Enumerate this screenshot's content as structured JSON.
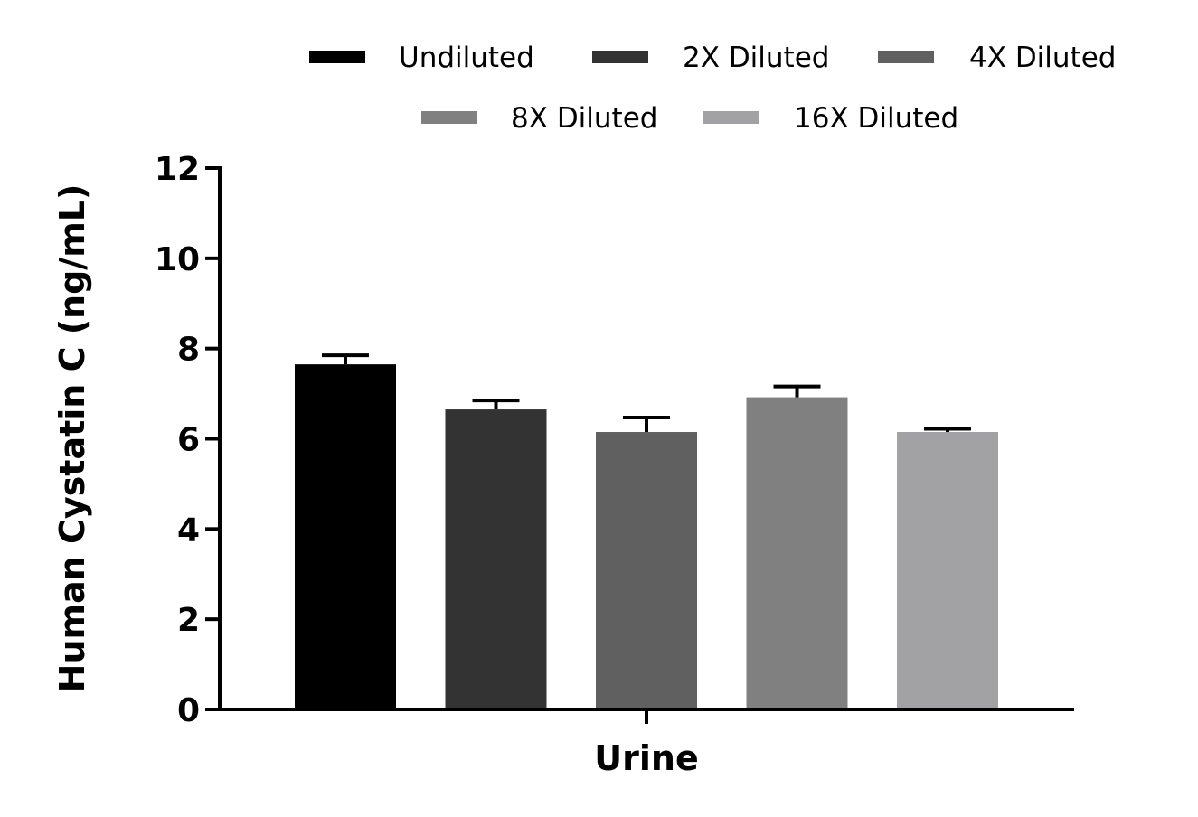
{
  "chart_data": {
    "type": "bar",
    "title": "",
    "xlabel": "Urine",
    "ylabel": "Human Cystatin C (ng/mL)",
    "categories": [
      "Urine"
    ],
    "ylim": [
      0,
      12
    ],
    "yticks": [
      "0",
      "2",
      "4",
      "6",
      "8",
      "10",
      "12"
    ],
    "grid": false,
    "legend_position": "top",
    "series": [
      {
        "name": "Undiluted",
        "values": [
          7.65
        ],
        "error": [
          0.2
        ],
        "color": "#000000"
      },
      {
        "name": "2X Diluted",
        "values": [
          6.65
        ],
        "error": [
          0.2
        ],
        "color": "#333333"
      },
      {
        "name": "4X Diluted",
        "values": [
          6.15
        ],
        "error": [
          0.32
        ],
        "color": "#606060"
      },
      {
        "name": "8X Diluted",
        "values": [
          6.92
        ],
        "error": [
          0.24
        ],
        "color": "#808080"
      },
      {
        "name": "16X Diluted",
        "values": [
          6.15
        ],
        "error": [
          0.07
        ],
        "color": "#a2a2a5"
      }
    ]
  }
}
